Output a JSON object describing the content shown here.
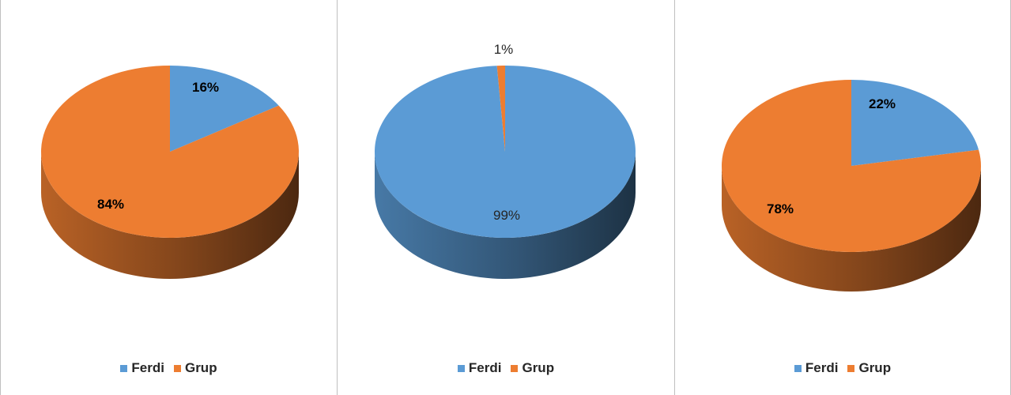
{
  "chart_data": [
    {
      "type": "pie",
      "categories": [
        "Ferdi",
        "Grup"
      ],
      "values": [
        16,
        84
      ],
      "data_labels": [
        "16%",
        "84%"
      ],
      "label_style": [
        "bold",
        "bold"
      ],
      "colors": [
        "#5b9bd5",
        "#ed7d31"
      ],
      "legend": [
        "Ferdi",
        "Grup"
      ],
      "legend_position": "bottom",
      "style": "3d"
    },
    {
      "type": "pie",
      "categories": [
        "Ferdi",
        "Grup"
      ],
      "values": [
        99,
        1
      ],
      "data_labels": [
        "99%",
        "1%"
      ],
      "label_style": [
        "normal",
        "normal"
      ],
      "colors": [
        "#5b9bd5",
        "#ed7d31"
      ],
      "legend": [
        "Ferdi",
        "Grup"
      ],
      "legend_position": "bottom",
      "style": "3d"
    },
    {
      "type": "pie",
      "categories": [
        "Ferdi",
        "Grup"
      ],
      "values": [
        22,
        78
      ],
      "data_labels": [
        "22%",
        "78%"
      ],
      "label_style": [
        "bold",
        "bold"
      ],
      "colors": [
        "#5b9bd5",
        "#ed7d31"
      ],
      "legend": [
        "Ferdi",
        "Grup"
      ],
      "legend_position": "bottom",
      "style": "3d"
    }
  ]
}
